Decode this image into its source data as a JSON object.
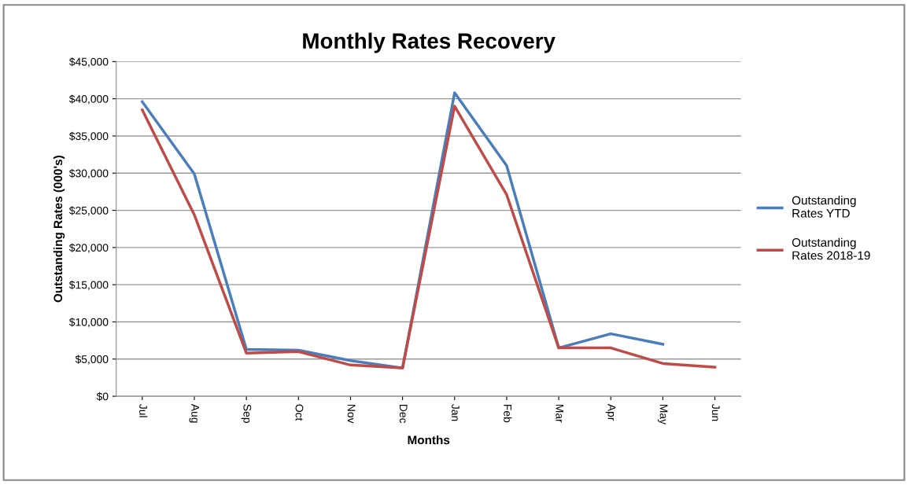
{
  "chart_data": {
    "type": "line",
    "title": "Monthly Rates Recovery",
    "xlabel": "Months",
    "ylabel": "Outstanding Rates (000's)",
    "categories": [
      "Jul",
      "Aug",
      "Sep",
      "Oct",
      "Nov",
      "Dec",
      "Jan",
      "Feb",
      "Mar",
      "Apr",
      "May",
      "Jun"
    ],
    "series": [
      {
        "name": "Outstanding\nRates YTD",
        "color": "#4a7ebb",
        "values": [
          39600,
          29900,
          6300,
          6200,
          4800,
          3800,
          40800,
          31000,
          6500,
          8400,
          7000,
          null
        ]
      },
      {
        "name": "Outstanding\nRates 2018-19",
        "color": "#be4b48",
        "values": [
          38500,
          24400,
          5800,
          6000,
          4200,
          3800,
          39000,
          27100,
          6500,
          6500,
          4400,
          3900
        ]
      }
    ],
    "ylim": [
      0,
      45000
    ],
    "yticks": [
      {
        "value": 0,
        "label": "$0"
      },
      {
        "value": 5000,
        "label": "$5,000"
      },
      {
        "value": 10000,
        "label": "$10,000"
      },
      {
        "value": 15000,
        "label": "$15,000"
      },
      {
        "value": 20000,
        "label": "$20,000"
      },
      {
        "value": 25000,
        "label": "$25,000"
      },
      {
        "value": 30000,
        "label": "$30,000"
      },
      {
        "value": 35000,
        "label": "$35,000"
      },
      {
        "value": 40000,
        "label": "$40,000"
      },
      {
        "value": 45000,
        "label": "$45,000"
      }
    ],
    "grid": "y",
    "legend": "right",
    "marker": "none",
    "line_style": "solid"
  }
}
